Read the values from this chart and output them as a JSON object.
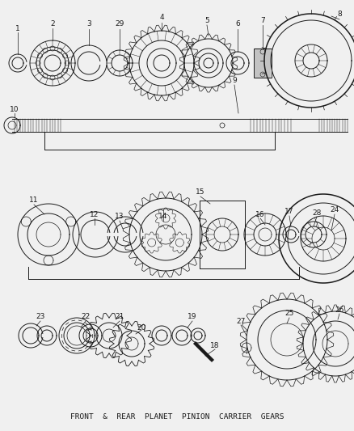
{
  "bg_color": "#f0f0f0",
  "title": "FRONT  &  REAR  PLANET  PINION  CARRIER  GEARS",
  "title_fontsize": 6.8,
  "fig_width": 4.38,
  "fig_height": 5.33,
  "dpi": 100,
  "line_color": "#1a1a1a",
  "lw": 0.7
}
